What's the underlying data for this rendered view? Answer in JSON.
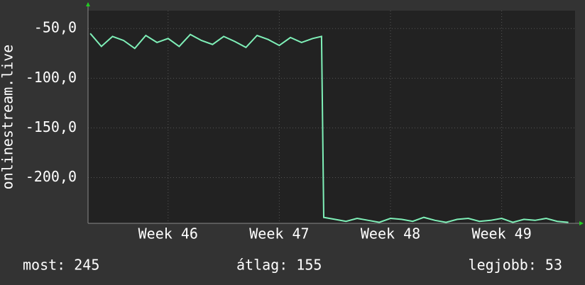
{
  "chart_data": {
    "type": "line",
    "ylabel": "onlinestream.live",
    "x": [
      45.3,
      45.4,
      45.5,
      45.6,
      45.7,
      45.8,
      45.9,
      46.0,
      46.1,
      46.2,
      46.3,
      46.4,
      46.5,
      46.6,
      46.7,
      46.8,
      46.9,
      47.0,
      47.1,
      47.2,
      47.3,
      47.38,
      47.4,
      47.5,
      47.6,
      47.7,
      47.8,
      47.9,
      48.0,
      48.1,
      48.2,
      48.3,
      48.4,
      48.5,
      48.6,
      48.7,
      48.8,
      48.9,
      49.0,
      49.1,
      49.2,
      49.3,
      49.4,
      49.5,
      49.6
    ],
    "values": [
      -55,
      -68,
      -58,
      -62,
      -70,
      -57,
      -64,
      -60,
      -68,
      -56,
      -62,
      -66,
      -58,
      -63,
      -69,
      -57,
      -61,
      -67,
      -59,
      -64,
      -60,
      -58,
      -240,
      -242,
      -244,
      -241,
      -243,
      -245,
      -241,
      -242,
      -244,
      -240,
      -243,
      -245,
      -242,
      -241,
      -244,
      -243,
      -241,
      -245,
      -242,
      -243,
      -241,
      -244,
      -245
    ],
    "color": "#7ff0b8",
    "xlim": [
      45.28,
      49.66
    ],
    "xticks": [
      {
        "value": 46,
        "label": "Week 46"
      },
      {
        "value": 47,
        "label": "Week 47"
      },
      {
        "value": 48,
        "label": "Week 48"
      },
      {
        "value": 49,
        "label": "Week 49"
      }
    ],
    "ylim": [
      -246,
      -32
    ],
    "yticks": [
      {
        "value": -50,
        "label": "-50,0"
      },
      {
        "value": -100,
        "label": "-100,0"
      },
      {
        "value": -150,
        "label": "-150,0"
      },
      {
        "value": -200,
        "label": "-200,0"
      }
    ],
    "grid": true,
    "footer": [
      "most: 245",
      "átlag: 155",
      "legjobb: 53"
    ]
  }
}
